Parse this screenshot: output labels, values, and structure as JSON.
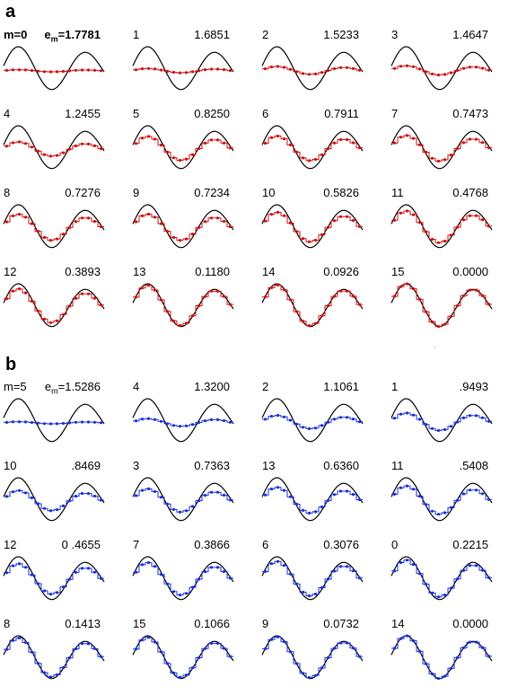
{
  "panels": [
    {
      "label": "a",
      "color": "#cc1111",
      "cells": [
        {
          "m": "m=0",
          "e": "e_m=1.7781",
          "m_bold": true
        },
        {
          "m": "1",
          "e": "1.6851"
        },
        {
          "m": "2",
          "e": "1.5233"
        },
        {
          "m": "3",
          "e": "1.4647"
        },
        {
          "m": "4",
          "e": "1.2455"
        },
        {
          "m": "5",
          "e": "0.8250"
        },
        {
          "m": "6",
          "e": "0.7911"
        },
        {
          "m": "7",
          "e": "0.7473"
        },
        {
          "m": "8",
          "e": "0.7276"
        },
        {
          "m": "9",
          "e": "0.7234"
        },
        {
          "m": "10",
          "e": "0.5826"
        },
        {
          "m": "11",
          "e": "0.4768"
        },
        {
          "m": "12",
          "e": "0.3893"
        },
        {
          "m": "13",
          "e": "0.1180"
        },
        {
          "m": "14",
          "e": "0.0926"
        },
        {
          "m": "15",
          "e": "0.0000"
        }
      ]
    },
    {
      "label": "b",
      "color": "#1a2fd6",
      "cells": [
        {
          "m": "m=5",
          "e": "e_m=1.5286"
        },
        {
          "m": "4",
          "e": "1.3200"
        },
        {
          "m": "2",
          "e": "1.1061"
        },
        {
          "m": "1",
          "e": ".9493"
        },
        {
          "m": "10",
          "e": ".8469"
        },
        {
          "m": "3",
          "e": "0.7363"
        },
        {
          "m": "13",
          "e": "0.6360"
        },
        {
          "m": "11",
          "e": ".5408"
        },
        {
          "m": "12",
          "e": "0 .4655"
        },
        {
          "m": "7",
          "e": "0.3866"
        },
        {
          "m": "6",
          "e": "0.3076"
        },
        {
          "m": "0",
          "e": "0.2215"
        },
        {
          "m": "8",
          "e": "0.1413"
        },
        {
          "m": "15",
          "e": "0.1066"
        },
        {
          "m": "9",
          "e": "0.0732"
        },
        {
          "m": "14",
          "e": "0.0000"
        }
      ]
    }
  ],
  "chart_data": {
    "type": "line",
    "description_of_series": "target curve and staircase approximation per cell",
    "target_color": "#000000",
    "steps": 16
  }
}
